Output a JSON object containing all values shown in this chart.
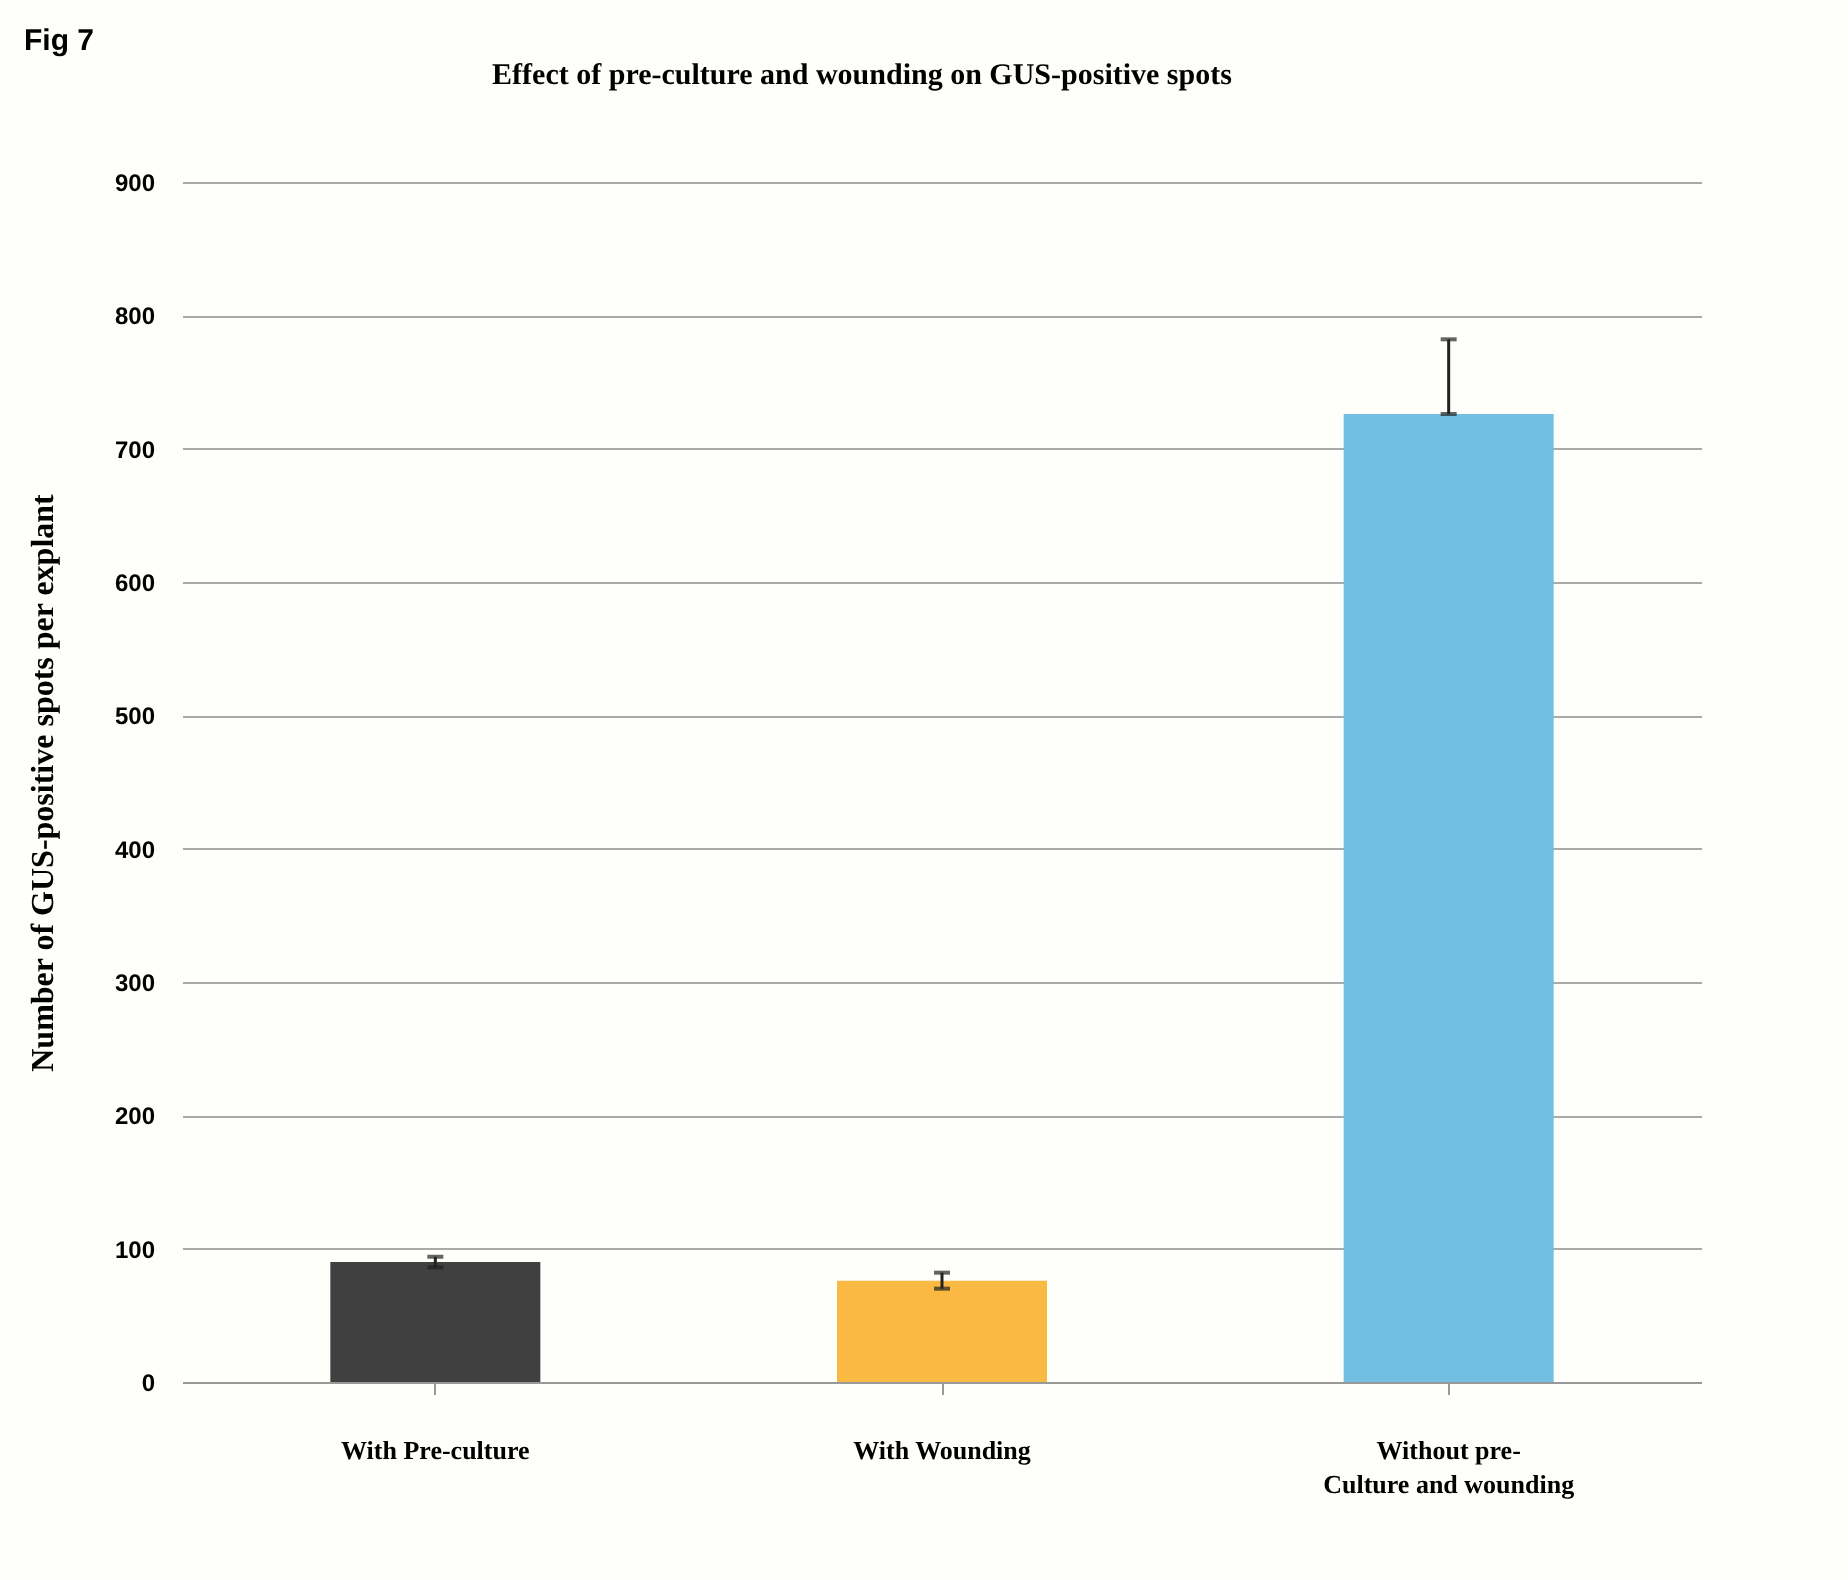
{
  "chart_data": {
    "type": "bar",
    "title": "Effect of pre-culture and wounding on GUS-positive spots",
    "ylabel": "Number of GUS-positive spots per explant",
    "annotations": [
      "Fig 7"
    ],
    "categories": [
      "With Pre-culture",
      "With  Wounding",
      "Without pre-\nCulture and wounding"
    ],
    "values": [
      90,
      76,
      726
    ],
    "colors": [
      "#404040",
      "#f9b942",
      "#71bfe2"
    ],
    "errors": [
      4,
      6,
      [
        726,
        782
      ]
    ],
    "ylim": [
      0,
      900
    ],
    "yticks": [
      0,
      100,
      200,
      300,
      400,
      500,
      600,
      700,
      800,
      900
    ],
    "grid": "y"
  }
}
